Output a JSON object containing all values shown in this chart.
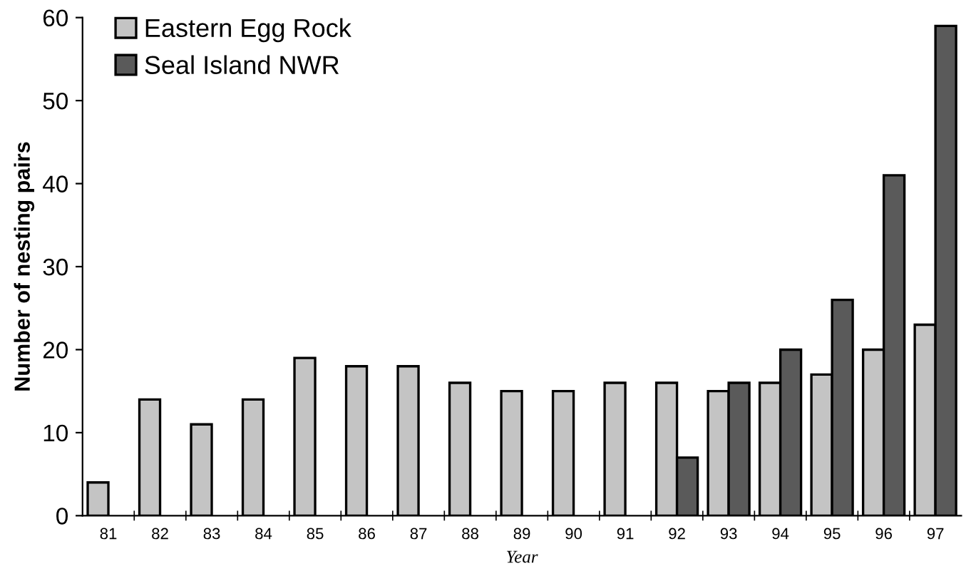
{
  "chart_data": {
    "type": "bar",
    "xlabel": "Year",
    "ylabel": "Number of nesting pairs",
    "categories": [
      "81",
      "82",
      "83",
      "84",
      "85",
      "86",
      "87",
      "88",
      "89",
      "90",
      "91",
      "92",
      "93",
      "94",
      "95",
      "96",
      "97"
    ],
    "series": [
      {
        "name": "Eastern Egg Rock",
        "color": "#c4c4c4",
        "values": [
          4,
          14,
          11,
          14,
          19,
          18,
          18,
          16,
          15,
          15,
          16,
          16,
          15,
          16,
          17,
          20,
          23
        ]
      },
      {
        "name": "Seal Island NWR",
        "color": "#5a5a5a",
        "values": [
          null,
          null,
          null,
          null,
          null,
          null,
          null,
          null,
          null,
          null,
          null,
          7,
          16,
          20,
          26,
          41,
          59
        ]
      }
    ],
    "ylim": [
      0,
      60
    ],
    "yticks": [
      0,
      10,
      20,
      30,
      40,
      50,
      60
    ],
    "grid": false,
    "legend": "top left"
  }
}
